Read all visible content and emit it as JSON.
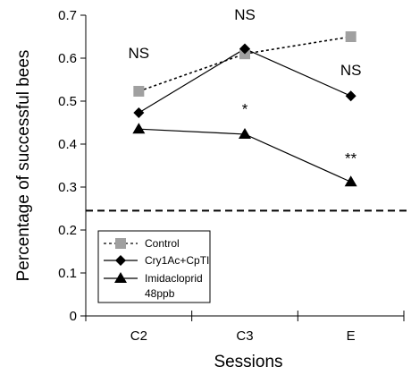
{
  "chart_data": {
    "type": "line",
    "title": "",
    "xlabel": "Sessions",
    "ylabel": "Percentage of successful bees",
    "categories": [
      "C2",
      "C3",
      "E"
    ],
    "ylim": [
      0,
      0.7
    ],
    "yticks": [
      0,
      0.1,
      0.2,
      0.3,
      0.4,
      0.5,
      0.6,
      0.7
    ],
    "ytick_labels": [
      "0",
      "0.1",
      "0.2",
      "0.3",
      "0.4",
      "0.5",
      "0.6",
      "0.7"
    ],
    "grid": false,
    "legend_position": "bottom-left",
    "reference_line": {
      "y": 0.245,
      "style": "dashed"
    },
    "series": [
      {
        "name": "Control",
        "values": [
          0.523,
          0.61,
          0.65
        ],
        "color": "#a0a0a0",
        "line": "dotted",
        "marker": "square"
      },
      {
        "name": "Cry1Ac+CpTI",
        "values": [
          0.473,
          0.622,
          0.512
        ],
        "color": "#000000",
        "line": "solid",
        "marker": "diamond"
      },
      {
        "name": "Imidacloprid 48ppb",
        "legend_lines": [
          "Imidacloprid",
          "48ppb"
        ],
        "values": [
          0.435,
          0.423,
          0.312
        ],
        "color": "#000000",
        "line": "solid",
        "marker": "triangle"
      }
    ],
    "annotations": [
      {
        "text": "NS",
        "x": "C2",
        "y": 0.6
      },
      {
        "text": "NS",
        "x": "C3",
        "y": 0.69
      },
      {
        "text": "NS",
        "x": "E",
        "y": 0.56
      },
      {
        "text": "*",
        "x": "C3",
        "y": 0.47
      },
      {
        "text": "**",
        "x": "E",
        "y": 0.355
      }
    ]
  }
}
